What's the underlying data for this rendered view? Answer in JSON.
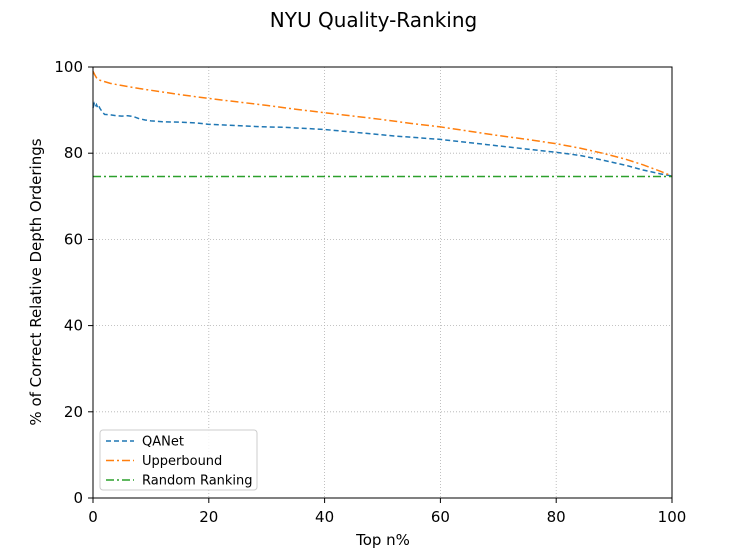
{
  "chart_data": {
    "type": "line",
    "title": "NYU Quality-Ranking",
    "xlabel": "Top n%",
    "ylabel": "% of Correct Relative Depth Orderings",
    "xlim": [
      0,
      100
    ],
    "ylim": [
      0,
      100
    ],
    "xticks": [
      0,
      20,
      40,
      60,
      80,
      100
    ],
    "yticks": [
      0,
      20,
      40,
      60,
      80,
      100
    ],
    "grid": true,
    "grid_style": "dotted",
    "legend_position": "lower-left",
    "series": [
      {
        "name": "QANet",
        "color": "#1f77b4",
        "dash": "dashed",
        "x": [
          0,
          0.2,
          0.4,
          0.6,
          0.8,
          1.0,
          1.2,
          1.6,
          2.0,
          3,
          4,
          5,
          6,
          7,
          8,
          9,
          10,
          12,
          15,
          18,
          20,
          22,
          25,
          28,
          30,
          33,
          36,
          40,
          44,
          48,
          52,
          56,
          60,
          64,
          68,
          72,
          76,
          80,
          84,
          88,
          92,
          95,
          98,
          100
        ],
        "y": [
          90.5,
          91.5,
          90.8,
          91.3,
          90.6,
          91.0,
          90.4,
          89.6,
          89.0,
          88.9,
          88.7,
          88.6,
          88.7,
          88.5,
          88.0,
          87.7,
          87.5,
          87.3,
          87.2,
          87.0,
          86.7,
          86.6,
          86.4,
          86.2,
          86.1,
          86.0,
          85.8,
          85.5,
          85.0,
          84.5,
          84.0,
          83.6,
          83.2,
          82.6,
          82.0,
          81.4,
          80.8,
          80.2,
          79.5,
          78.4,
          77.2,
          76.1,
          75.2,
          74.7
        ]
      },
      {
        "name": "Upperbound",
        "color": "#ff7f0e",
        "dash": "dashdot",
        "x": [
          0,
          0.3,
          0.6,
          1,
          2,
          3,
          5,
          8,
          10,
          15,
          20,
          25,
          30,
          35,
          40,
          45,
          50,
          55,
          60,
          65,
          70,
          75,
          80,
          84,
          88,
          92,
          95,
          98,
          100
        ],
        "y": [
          99.0,
          98.2,
          97.5,
          97.0,
          96.6,
          96.2,
          95.7,
          95.0,
          94.6,
          93.6,
          92.7,
          91.9,
          91.1,
          90.2,
          89.4,
          88.6,
          87.8,
          86.9,
          86.1,
          85.1,
          84.1,
          83.2,
          82.2,
          81.2,
          80.0,
          78.6,
          77.3,
          75.8,
          74.7
        ]
      },
      {
        "name": "Random Ranking",
        "color": "#2ca02c",
        "dash": "dashdot",
        "x": [
          0,
          100
        ],
        "y": [
          74.6,
          74.6
        ]
      }
    ]
  }
}
